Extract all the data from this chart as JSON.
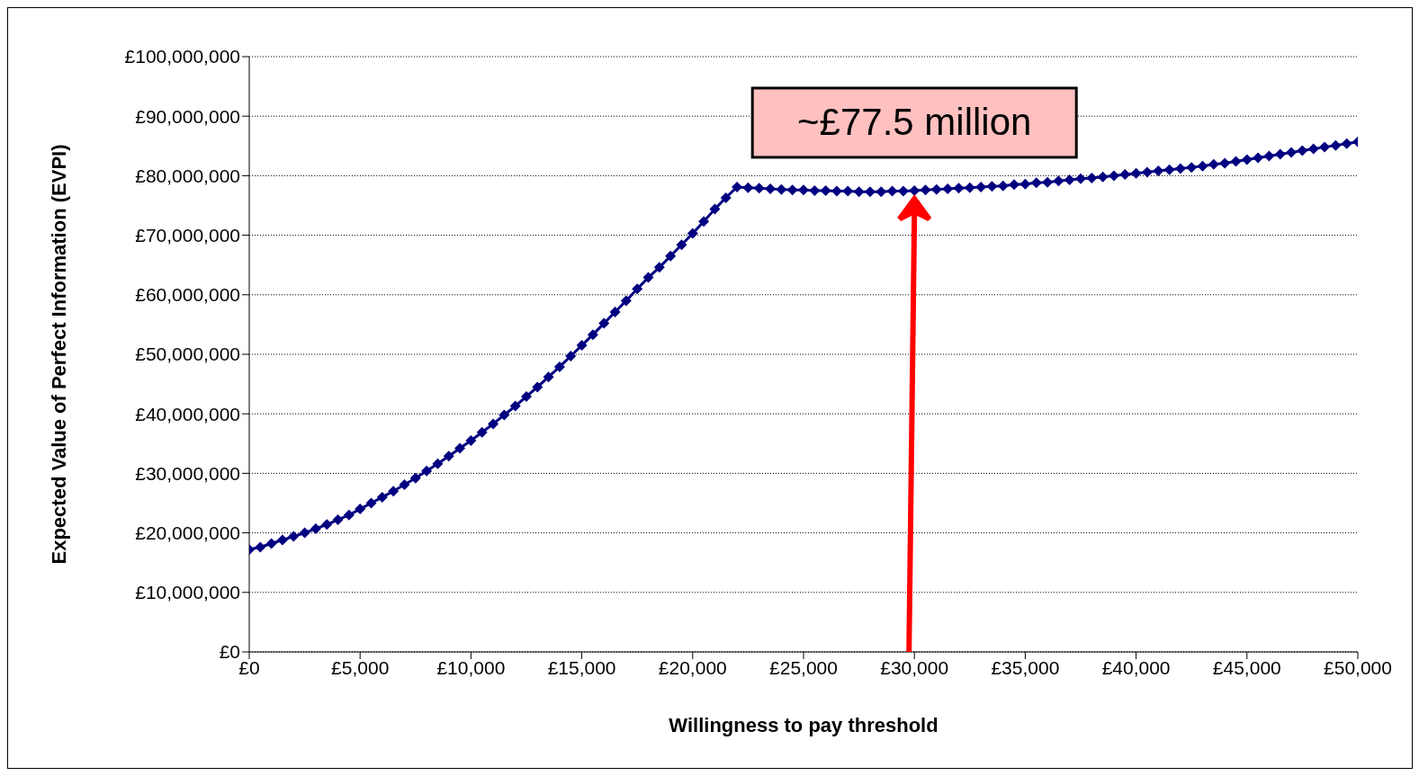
{
  "chart_data": {
    "type": "line",
    "xlabel": "Willingness to pay threshold",
    "ylabel": "Expected Value of Perfect Information (EVPI)",
    "x": [
      0,
      500,
      1000,
      1500,
      2000,
      2500,
      3000,
      3500,
      4000,
      4500,
      5000,
      5500,
      6000,
      6500,
      7000,
      7500,
      8000,
      8500,
      9000,
      9500,
      10000,
      10500,
      11000,
      11500,
      12000,
      12500,
      13000,
      13500,
      14000,
      14500,
      15000,
      15500,
      16000,
      16500,
      17000,
      17500,
      18000,
      18500,
      19000,
      19500,
      20000,
      20500,
      21000,
      21500,
      22000,
      22500,
      23000,
      23500,
      24000,
      24500,
      25000,
      25500,
      26000,
      26500,
      27000,
      27500,
      28000,
      28500,
      29000,
      29500,
      30000,
      30500,
      31000,
      31500,
      32000,
      32500,
      33000,
      33500,
      34000,
      34500,
      35000,
      35500,
      36000,
      36500,
      37000,
      37500,
      38000,
      38500,
      39000,
      39500,
      40000,
      40500,
      41000,
      41500,
      42000,
      42500,
      43000,
      43500,
      44000,
      44500,
      45000,
      45500,
      46000,
      46500,
      47000,
      47500,
      48000,
      48500,
      49000,
      49500,
      50000
    ],
    "series": [
      {
        "color": "#000080",
        "values": [
          17200000,
          17600000,
          18200000,
          18800000,
          19400000,
          20000000,
          20700000,
          21400000,
          22200000,
          23000000,
          24000000,
          25000000,
          26000000,
          27000000,
          28100000,
          29200000,
          30400000,
          31600000,
          32900000,
          34200000,
          35500000,
          36900000,
          38300000,
          39800000,
          41300000,
          42900000,
          44500000,
          46200000,
          47900000,
          49700000,
          51500000,
          53300000,
          55200000,
          57100000,
          59000000,
          61000000,
          62900000,
          64600000,
          66500000,
          68400000,
          70300000,
          72300000,
          74400000,
          76300000,
          78100000,
          78000000,
          77900000,
          77800000,
          77700000,
          77600000,
          77600000,
          77500000,
          77500000,
          77400000,
          77400000,
          77300000,
          77300000,
          77300000,
          77400000,
          77400000,
          77500000,
          77600000,
          77700000,
          77800000,
          77900000,
          78000000,
          78100000,
          78200000,
          78300000,
          78500000,
          78600000,
          78800000,
          78900000,
          79100000,
          79300000,
          79500000,
          79600000,
          79800000,
          80000000,
          80200000,
          80400000,
          80600000,
          80800000,
          81000000,
          81200000,
          81400000,
          81600000,
          81900000,
          82100000,
          82400000,
          82700000,
          83000000,
          83300000,
          83600000,
          83900000,
          84200000,
          84500000,
          84800000,
          85100000,
          85400000,
          85700000
        ]
      }
    ],
    "xlim": [
      0,
      50000
    ],
    "xticks": [
      {
        "value": 0,
        "label": "£0"
      },
      {
        "value": 5000,
        "label": "£5,000"
      },
      {
        "value": 10000,
        "label": "£10,000"
      },
      {
        "value": 15000,
        "label": "£15,000"
      },
      {
        "value": 20000,
        "label": "£20,000"
      },
      {
        "value": 25000,
        "label": "£25,000"
      },
      {
        "value": 30000,
        "label": "£30,000"
      },
      {
        "value": 35000,
        "label": "£35,000"
      },
      {
        "value": 40000,
        "label": "£40,000"
      },
      {
        "value": 45000,
        "label": "£45,000"
      },
      {
        "value": 50000,
        "label": "£50,000"
      }
    ],
    "ylim": [
      0,
      100000000
    ],
    "yticks": [
      {
        "value": 0,
        "label": "£0"
      },
      {
        "value": 10000000,
        "label": "£10,000,000"
      },
      {
        "value": 20000000,
        "label": "£20,000,000"
      },
      {
        "value": 30000000,
        "label": "£30,000,000"
      },
      {
        "value": 40000000,
        "label": "£40,000,000"
      },
      {
        "value": 50000000,
        "label": "£50,000,000"
      },
      {
        "value": 60000000,
        "label": "£60,000,000"
      },
      {
        "value": 70000000,
        "label": "£70,000,000"
      },
      {
        "value": 80000000,
        "label": "£80,000,000"
      },
      {
        "value": 90000000,
        "label": "£90,000,000"
      },
      {
        "value": 100000000,
        "label": "£100,000,000"
      }
    ],
    "annotations": [
      {
        "text": "~£77.5 million",
        "x": 30000,
        "y": 77500000
      }
    ],
    "grid": "y",
    "marker": "diamond",
    "line_style": "solid"
  }
}
